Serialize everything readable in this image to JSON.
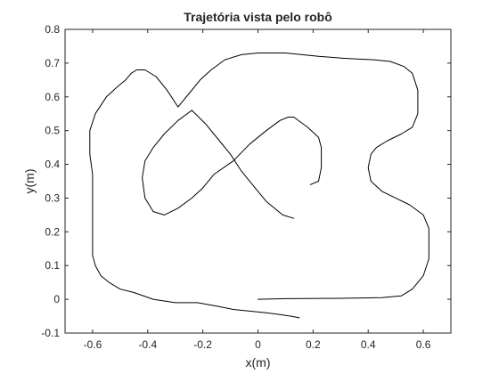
{
  "chart_data": {
    "type": "line",
    "title": "Trajetória vista pelo robô",
    "xlabel": "x(m)",
    "ylabel": "y(m)",
    "xlim": [
      -0.7,
      0.7
    ],
    "ylim": [
      -0.1,
      0.8
    ],
    "xticks": [
      -0.6,
      -0.4,
      -0.2,
      0,
      0.2,
      0.4,
      0.6
    ],
    "xtick_labels": [
      "-0.6",
      "-0.4",
      "-0.2",
      "0",
      "0.2",
      "0.4",
      "0.6"
    ],
    "yticks": [
      -0.1,
      0,
      0.1,
      0.2,
      0.3,
      0.4,
      0.5,
      0.6,
      0.7,
      0.8
    ],
    "ytick_labels": [
      "-0.1",
      "0",
      "0.1",
      "0.2",
      "0.3",
      "0.4",
      "0.5",
      "0.6",
      "0.7",
      "0.8"
    ],
    "grid": false,
    "line_color": "#000000",
    "series": [
      {
        "x": [
          0.0,
          0.1,
          0.3,
          0.45,
          0.52,
          0.56,
          0.6,
          0.62,
          0.62,
          0.6,
          0.55,
          0.5,
          0.45,
          0.41,
          0.4,
          0.41,
          0.43,
          0.47,
          0.52,
          0.56,
          0.58,
          0.58,
          0.56,
          0.53,
          0.48,
          0.42,
          0.36,
          0.3,
          0.22,
          0.1,
          0.0,
          -0.06,
          -0.12,
          -0.17,
          -0.21,
          -0.25,
          -0.29,
          -0.33,
          -0.37,
          -0.41,
          -0.44,
          -0.46,
          -0.48,
          -0.51,
          -0.55,
          -0.59,
          -0.61,
          -0.61,
          -0.6,
          -0.6,
          -0.6,
          -0.6,
          -0.59,
          -0.57,
          -0.54,
          -0.5,
          -0.45,
          -0.38,
          -0.3,
          -0.22,
          -0.15,
          -0.09,
          -0.03,
          0.03,
          0.08,
          0.12,
          0.15,
          0.19,
          0.22,
          0.23,
          0.23,
          0.22,
          0.18,
          0.13,
          0.11,
          0.08,
          0.03,
          -0.03,
          -0.09,
          -0.16,
          -0.2,
          -0.24,
          -0.29,
          -0.34,
          -0.38,
          -0.41,
          -0.42,
          -0.41,
          -0.38,
          -0.34,
          -0.29,
          -0.24,
          -0.19,
          -0.14,
          -0.1,
          -0.06,
          -0.02,
          0.03,
          0.09,
          0.13
        ],
        "y": [
          0.0,
          0.002,
          0.003,
          0.005,
          0.01,
          0.03,
          0.07,
          0.12,
          0.21,
          0.25,
          0.28,
          0.3,
          0.32,
          0.35,
          0.39,
          0.43,
          0.45,
          0.47,
          0.49,
          0.51,
          0.55,
          0.62,
          0.67,
          0.69,
          0.705,
          0.71,
          0.712,
          0.715,
          0.72,
          0.73,
          0.73,
          0.725,
          0.71,
          0.68,
          0.65,
          0.61,
          0.57,
          0.62,
          0.66,
          0.68,
          0.68,
          0.67,
          0.65,
          0.63,
          0.6,
          0.55,
          0.5,
          0.43,
          0.37,
          0.3,
          0.2,
          0.13,
          0.1,
          0.07,
          0.05,
          0.03,
          0.02,
          0.0,
          -0.01,
          -0.01,
          -0.02,
          -0.03,
          -0.035,
          -0.04,
          -0.045,
          -0.05,
          -0.055,
          0.34,
          0.35,
          0.39,
          0.45,
          0.48,
          0.51,
          0.54,
          0.54,
          0.53,
          0.5,
          0.46,
          0.41,
          0.37,
          0.33,
          0.3,
          0.27,
          0.25,
          0.26,
          0.3,
          0.36,
          0.41,
          0.45,
          0.49,
          0.53,
          0.56,
          0.52,
          0.47,
          0.43,
          0.38,
          0.34,
          0.29,
          0.25,
          0.24
        ],
        "segments": [
          [
            0,
            67
          ],
          [
            67,
            100
          ]
        ]
      }
    ]
  }
}
